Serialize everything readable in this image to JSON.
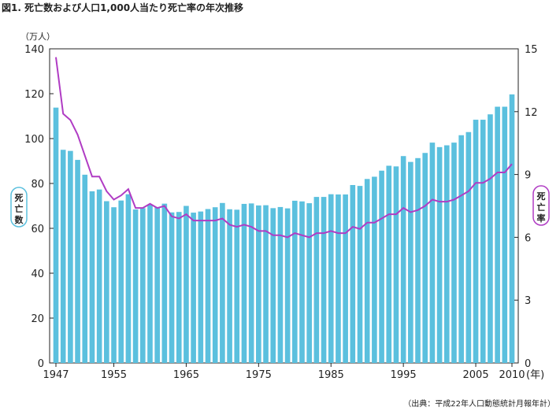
{
  "title": "図1. 死亡数および人口1,000人当たり死亡率の年次推移",
  "source": "（出典：平成22年人口動態統計月報年計）",
  "colors": {
    "bar": "#5bc0de",
    "line": "#b03cc4",
    "axis": "#222222"
  },
  "chart_data": {
    "type": "bar",
    "title": "",
    "x": [
      1947,
      1948,
      1949,
      1950,
      1951,
      1952,
      1953,
      1954,
      1955,
      1956,
      1957,
      1958,
      1959,
      1960,
      1961,
      1962,
      1963,
      1964,
      1965,
      1966,
      1967,
      1968,
      1969,
      1970,
      1971,
      1972,
      1973,
      1974,
      1975,
      1976,
      1977,
      1978,
      1979,
      1980,
      1981,
      1982,
      1983,
      1984,
      1985,
      1986,
      1987,
      1988,
      1989,
      1990,
      1991,
      1992,
      1993,
      1994,
      1995,
      1996,
      1997,
      1998,
      1999,
      2000,
      2001,
      2002,
      2003,
      2004,
      2005,
      2006,
      2007,
      2008,
      2009,
      2010
    ],
    "xticks": [
      "1947",
      "1955",
      "1965",
      "1975",
      "1985",
      "1995",
      "2005",
      "2010"
    ],
    "xunit": "(年)",
    "y_left": {
      "label": "死亡数",
      "unit": "（万人）",
      "ylim": [
        0,
        140
      ],
      "ticks": [
        "0",
        "20",
        "40",
        "60",
        "80",
        "100",
        "120",
        "140"
      ]
    },
    "y_right": {
      "label": "死亡率",
      "ylim": [
        0,
        15
      ],
      "ticks": [
        "0",
        "3",
        "6",
        "9",
        "12",
        "15"
      ]
    },
    "series": [
      {
        "type": "bar",
        "axis": "left",
        "values": [
          113.8,
          95.0,
          94.5,
          90.5,
          83.9,
          76.5,
          77.3,
          72.1,
          69.4,
          72.4,
          75.2,
          68.4,
          69.0,
          70.7,
          69.5,
          71.0,
          67.1,
          67.3,
          70.0,
          67.0,
          67.5,
          68.6,
          69.4,
          71.3,
          68.5,
          68.3,
          70.9,
          71.1,
          70.2,
          70.3,
          69.0,
          69.5,
          68.9,
          72.3,
          72.0,
          71.2,
          74.0,
          74.0,
          75.2,
          75.1,
          75.1,
          79.3,
          78.9,
          82.0,
          83.0,
          85.7,
          87.9,
          87.6,
          92.2,
          89.6,
          91.3,
          93.6,
          98.2,
          96.2,
          97.0,
          98.2,
          101.5,
          102.9,
          108.4,
          108.4,
          110.8,
          114.2,
          114.2,
          119.7
        ]
      },
      {
        "type": "line",
        "axis": "right",
        "values": [
          14.6,
          11.9,
          11.6,
          10.9,
          9.9,
          8.9,
          8.9,
          8.2,
          7.8,
          8.0,
          8.3,
          7.4,
          7.4,
          7.6,
          7.4,
          7.5,
          7.0,
          6.9,
          7.1,
          6.8,
          6.8,
          6.8,
          6.8,
          6.9,
          6.6,
          6.5,
          6.6,
          6.5,
          6.3,
          6.3,
          6.1,
          6.1,
          6.0,
          6.2,
          6.1,
          6.0,
          6.2,
          6.2,
          6.3,
          6.2,
          6.2,
          6.5,
          6.4,
          6.7,
          6.7,
          6.9,
          7.1,
          7.1,
          7.4,
          7.2,
          7.3,
          7.5,
          7.8,
          7.7,
          7.7,
          7.8,
          8.0,
          8.2,
          8.6,
          8.6,
          8.8,
          9.1,
          9.1,
          9.5
        ]
      }
    ]
  }
}
